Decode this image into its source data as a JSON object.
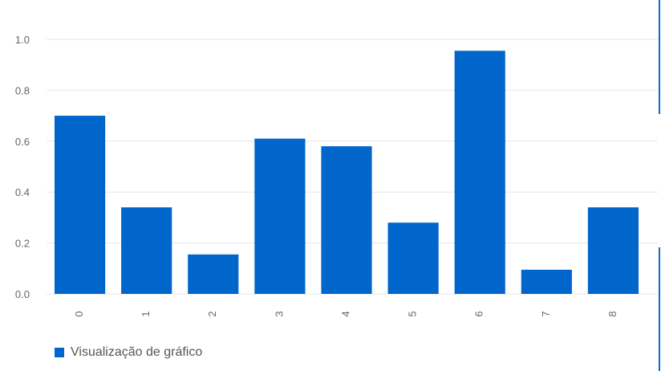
{
  "chart_data": {
    "type": "bar",
    "categories": [
      "0",
      "1",
      "2",
      "3",
      "4",
      "5",
      "6",
      "7",
      "8"
    ],
    "series": [
      {
        "name": "Visualização de gráfico",
        "values": [
          0.7,
          0.34,
          0.155,
          0.61,
          0.58,
          0.28,
          0.955,
          0.095,
          0.34
        ]
      }
    ],
    "ylim": [
      0,
      1.0
    ],
    "yticks": [
      "0.0",
      "0.2",
      "0.4",
      "0.6",
      "0.8",
      "1.0"
    ],
    "grid": true,
    "legend_position": "bottom-left",
    "bar_color": "#0066cc",
    "grid_color": "#e6e6e6",
    "tick_color": "#666666"
  }
}
